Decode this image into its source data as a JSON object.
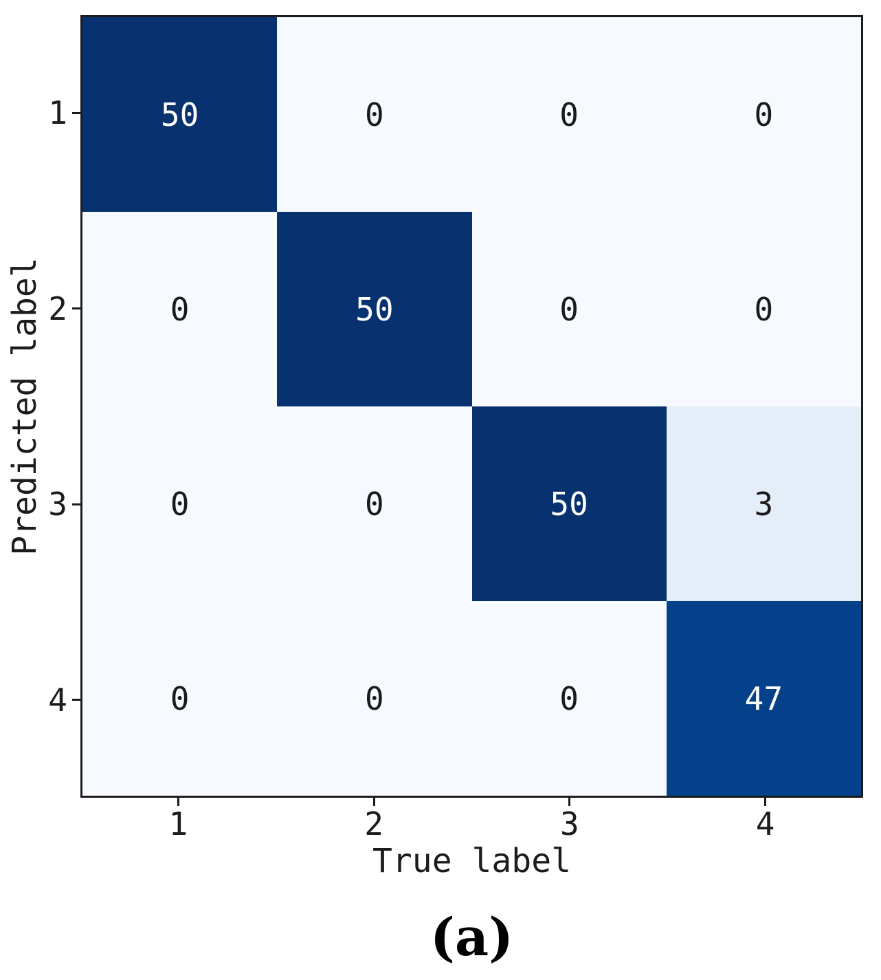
{
  "chart_data": {
    "type": "heatmap",
    "title": "",
    "xlabel": "True label",
    "ylabel": "Predicted label",
    "x_ticks": [
      "1",
      "2",
      "3",
      "4"
    ],
    "y_ticks": [
      "1",
      "2",
      "3",
      "4"
    ],
    "matrix": [
      [
        50,
        0,
        0,
        0
      ],
      [
        0,
        50,
        0,
        0
      ],
      [
        0,
        0,
        50,
        3
      ],
      [
        0,
        0,
        0,
        47
      ]
    ],
    "caption": "(a)",
    "colormap": "Blues",
    "legend": "none",
    "grid": false,
    "color_scale": [
      {
        "value": 0,
        "bg": "#f6f9fd",
        "fg": "#1a1a1a"
      },
      {
        "value": 3,
        "bg": "#e3eef9",
        "fg": "#1a1a1a"
      },
      {
        "value": 47,
        "bg": "#05418a",
        "fg": "#ffffff"
      },
      {
        "value": 50,
        "bg": "#08316f",
        "fg": "#ffffff"
      }
    ],
    "axis_color": "#1c1c1c"
  }
}
